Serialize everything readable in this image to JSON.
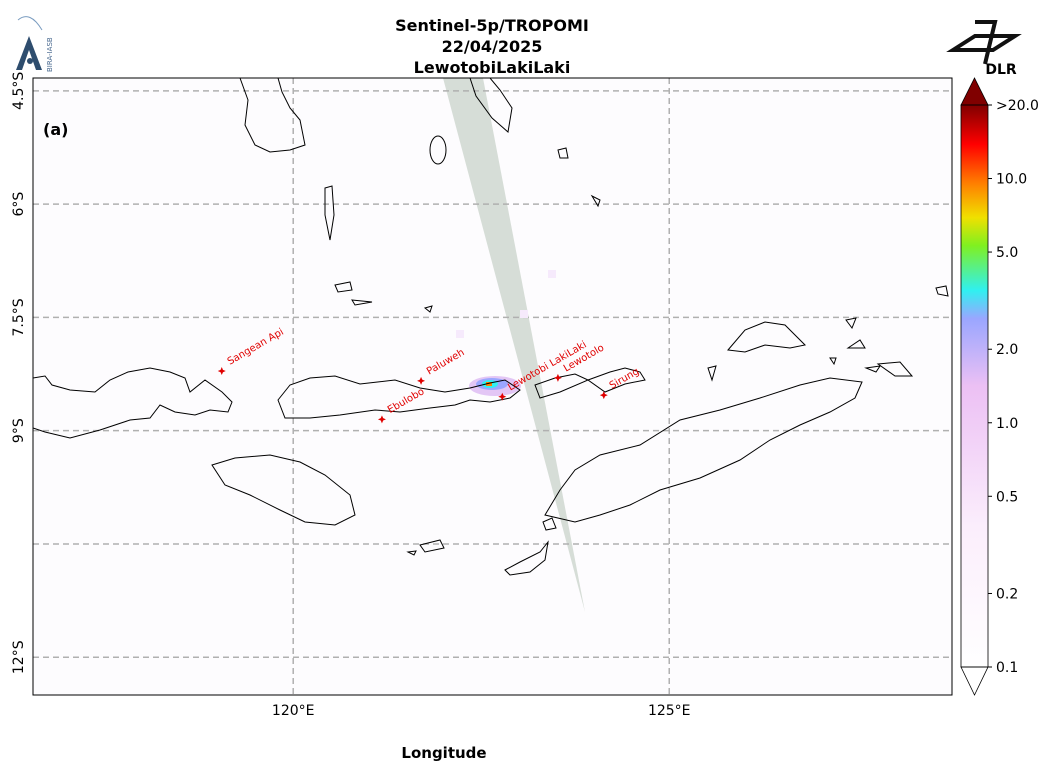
{
  "title": [
    "Sentinel-5p/TROPOMI",
    "22/04/2025",
    "LewotobiLakiLaki"
  ],
  "panel_label": "(a)",
  "logos": {
    "left": "BIRA-IASB",
    "right": "DLR"
  },
  "x_axis": {
    "label": "Longitude",
    "lim": [
      116.54,
      128.76
    ],
    "ticks": [
      {
        "value": 120,
        "label": "120°E"
      },
      {
        "value": 125,
        "label": "125°E"
      }
    ]
  },
  "y_axis": {
    "lim": [
      -12.5,
      -4.33
    ],
    "ticks": [
      {
        "value": -4.5,
        "label": "4.5°S"
      },
      {
        "value": -6,
        "label": "6°S"
      },
      {
        "value": -7.5,
        "label": "7.5°S"
      },
      {
        "value": -9,
        "label": "9°S"
      },
      {
        "value": -12,
        "label": "12°S"
      }
    ],
    "grid_lines": [
      -4.5,
      -6,
      -7.5,
      -9,
      -10.5,
      -12
    ]
  },
  "colorbar": {
    "scale": "log",
    "lim": [
      0.1,
      20
    ],
    "ticks": [
      0.1,
      0.2,
      0.5,
      {
        "value": 1,
        "label": "1.0"
      },
      {
        "value": 2,
        "label": "2.0"
      },
      {
        "value": 5,
        "label": "5.0"
      },
      {
        "value": 10,
        "label": "10.0"
      },
      {
        "value": 20,
        "label": ">20.0"
      }
    ]
  },
  "volcanoes": [
    {
      "name": "Sangean Api",
      "lon": 119.05,
      "lat": -8.21
    },
    {
      "name": "Ebulobo",
      "lon": 121.18,
      "lat": -8.85
    },
    {
      "name": "Paluweh",
      "lon": 121.7,
      "lat": -8.34
    },
    {
      "name": "Lewotobi LakiLaki",
      "lon": 122.78,
      "lat": -8.55
    },
    {
      "name": "Lewotolo",
      "lon": 123.52,
      "lat": -8.3
    },
    {
      "name": "Sirung",
      "lon": 124.13,
      "lat": -8.53
    }
  ]
}
